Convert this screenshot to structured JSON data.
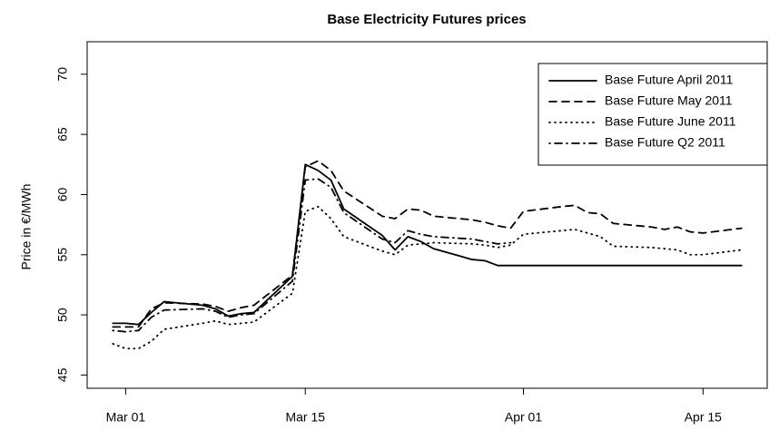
{
  "chart_data": {
    "type": "line",
    "title": "Base Electricity Futures prices",
    "y_label": "Price in €/MWh",
    "x": [
      "Feb 28",
      "Mar 01",
      "Mar 02",
      "Mar 03",
      "Mar 04",
      "Mar 07",
      "Mar 08",
      "Mar 09",
      "Mar 10",
      "Mar 11",
      "Mar 14",
      "Mar 15",
      "Mar 16",
      "Mar 17",
      "Mar 18",
      "Mar 21",
      "Mar 22",
      "Mar 23",
      "Mar 24",
      "Mar 25",
      "Mar 28",
      "Mar 29",
      "Mar 30",
      "Mar 31",
      "Apr 01",
      "Apr 04",
      "Apr 05",
      "Apr 06",
      "Apr 07",
      "Apr 08",
      "Apr 11",
      "Apr 12",
      "Apr 13",
      "Apr 14",
      "Apr 15",
      "Apr 18"
    ],
    "series": [
      {
        "name": "Base Future April 2011",
        "color": "#000000",
        "linestyle": "solid",
        "values": [
          49.3,
          49.3,
          49.2,
          50.2,
          51.1,
          50.8,
          50.5,
          49.9,
          50.1,
          50.2,
          53.2,
          62.5,
          62.0,
          61.2,
          58.8,
          56.6,
          55.4,
          56.5,
          56.1,
          55.5,
          54.6,
          54.5,
          54.1,
          54.1,
          54.1,
          54.1,
          54.1,
          54.1,
          54.1,
          54.1,
          54.1,
          54.1,
          54.1,
          54.1,
          54.1,
          54.1
        ]
      },
      {
        "name": "Base Future May 2011",
        "color": "#000000",
        "linestyle": "dashed",
        "values": [
          49.0,
          49.0,
          49.0,
          50.5,
          51.0,
          50.9,
          50.7,
          50.3,
          50.6,
          50.8,
          53.3,
          62.3,
          62.8,
          62.0,
          60.3,
          58.2,
          58.0,
          58.8,
          58.7,
          58.2,
          57.9,
          57.7,
          57.4,
          57.2,
          58.6,
          59.0,
          59.1,
          58.5,
          58.4,
          57.6,
          57.3,
          57.1,
          57.3,
          56.9,
          56.8,
          57.2
        ]
      },
      {
        "name": "Base Future June 2011",
        "color": "#000000",
        "linestyle": "dotted",
        "values": [
          47.6,
          47.2,
          47.2,
          47.8,
          48.8,
          49.3,
          49.5,
          49.2,
          49.3,
          49.4,
          51.8,
          58.6,
          59.0,
          58.0,
          56.5,
          55.3,
          55.0,
          55.8,
          55.9,
          56.0,
          55.9,
          55.8,
          55.6,
          55.8,
          56.7,
          57.0,
          57.1,
          56.8,
          56.5,
          55.7,
          55.6,
          55.5,
          55.4,
          55.0,
          55.0,
          55.4
        ]
      },
      {
        "name": "Base Future Q2 2011",
        "color": "#000000",
        "linestyle": "dotdash",
        "values": [
          48.7,
          48.6,
          48.7,
          49.8,
          50.4,
          50.5,
          50.3,
          49.8,
          50.0,
          50.1,
          52.8,
          61.2,
          61.3,
          60.6,
          58.5,
          56.3,
          56.0,
          57.0,
          56.7,
          56.5,
          56.3,
          56.1,
          55.9,
          56.0,
          null,
          null,
          null,
          null,
          null,
          null,
          null,
          null,
          null,
          null,
          null,
          null
        ]
      }
    ],
    "xlim": [
      "Feb 26",
      "Apr 20"
    ],
    "xticks": [
      "Mar 01",
      "Mar 15",
      "Apr 01",
      "Apr 15"
    ],
    "ylim": [
      43.9,
      72.7
    ],
    "yticks": [
      45,
      50,
      55,
      60,
      65,
      70
    ],
    "legend": "topright",
    "grid": false
  }
}
